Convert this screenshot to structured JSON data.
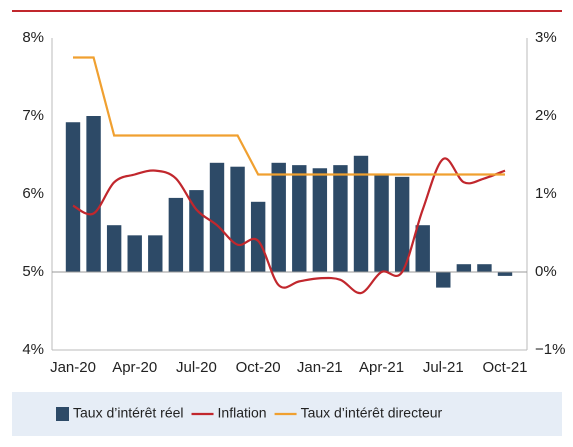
{
  "chart_data": {
    "type": "bar_line",
    "categories": [
      "Jan-20",
      null,
      null,
      "Apr-20",
      null,
      null,
      "Jul-20",
      null,
      null,
      "Oct-20",
      null,
      null,
      "Jan-21",
      null,
      null,
      "Apr-21",
      null,
      null,
      "Jul-21",
      null,
      null,
      "Oct-21"
    ],
    "series": [
      {
        "name": "Taux d’intérêt réel",
        "type": "bar",
        "axis": "y2",
        "color": "#2d4a67",
        "values": [
          1.92,
          2.0,
          0.6,
          0.47,
          0.47,
          0.95,
          1.05,
          1.4,
          1.35,
          0.9,
          1.4,
          1.37,
          1.33,
          1.37,
          1.49,
          1.25,
          1.22,
          0.6,
          -0.2,
          0.1,
          0.1,
          -0.05
        ]
      },
      {
        "name": "Inflation",
        "type": "line",
        "axis": "y2",
        "color": "#c1272d",
        "values": [
          0.85,
          0.75,
          1.15,
          1.25,
          1.3,
          1.2,
          0.8,
          0.6,
          0.35,
          0.4,
          -0.17,
          -0.12,
          -0.08,
          -0.1,
          -0.27,
          0.0,
          0.0,
          0.8,
          1.45,
          1.15,
          1.2,
          1.3
        ]
      },
      {
        "name": "Taux d’intérêt directeur",
        "type": "line",
        "axis": "y2",
        "color": "#f0a030",
        "values": [
          2.75,
          2.75,
          1.75,
          1.75,
          1.75,
          1.75,
          1.75,
          1.75,
          1.75,
          1.25,
          1.25,
          1.25,
          1.25,
          1.25,
          1.25,
          1.25,
          1.25,
          1.25,
          1.25,
          1.25,
          1.25,
          1.25
        ]
      }
    ],
    "ylim": [
      4,
      8
    ],
    "yticks": [
      {
        "value": 4,
        "label": "4%"
      },
      {
        "value": 5,
        "label": "5%"
      },
      {
        "value": 6,
        "label": "6%"
      },
      {
        "value": 7,
        "label": "7%"
      },
      {
        "value": 8,
        "label": "8%"
      }
    ],
    "y2lim": [
      -1,
      3
    ],
    "y2ticks": [
      {
        "value": -1,
        "label": "−1%"
      },
      {
        "value": 0,
        "label": "0%"
      },
      {
        "value": 1,
        "label": "1%"
      },
      {
        "value": 2,
        "label": "2%"
      },
      {
        "value": 3,
        "label": "3%"
      }
    ],
    "legend": "bottom"
  }
}
